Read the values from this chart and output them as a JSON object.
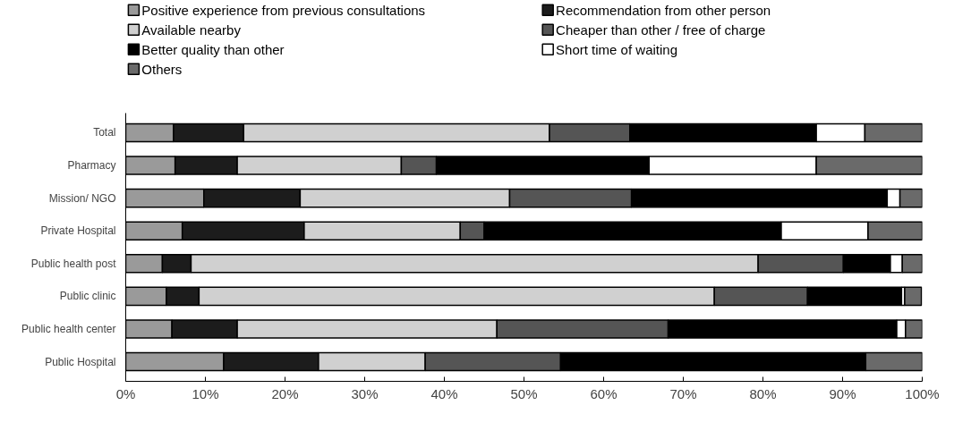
{
  "chart_data": {
    "type": "bar",
    "orientation": "horizontal",
    "stacked": true,
    "categories": [
      "Total",
      "Pharmacy",
      "Mission/ NGO",
      "Private Hospital",
      "Public health post",
      "Public clinic",
      "Public health center",
      "Public Hospital"
    ],
    "series": [
      {
        "name": "Positive experience from previous consultations",
        "color": "#9a9a9a",
        "values": [
          6,
          6.2,
          9.8,
          7.1,
          4.6,
          5.1,
          5.8,
          12.3
        ]
      },
      {
        "name": "Recommendation from other person",
        "color": "#1c1c1c",
        "values": [
          8.8,
          7.8,
          12.1,
          15.3,
          3.6,
          4.1,
          8.2,
          11.9
        ]
      },
      {
        "name": "Available nearby",
        "color": "#d0d0d0",
        "values": [
          38.4,
          20.6,
          26.3,
          19.6,
          71.2,
          64.7,
          32.6,
          13.4
        ]
      },
      {
        "name": "Cheaper than other / free of charge",
        "color": "#555555",
        "values": [
          10.1,
          4.4,
          15.3,
          3,
          10.7,
          11.7,
          21.5,
          17
        ]
      },
      {
        "name": "Better quality than other",
        "color": "#000000",
        "values": [
          23.4,
          26.7,
          32.1,
          37.3,
          5.9,
          11.8,
          28.7,
          38.3
        ]
      },
      {
        "name": "Short time of waiting",
        "color": "#ffffff",
        "values": [
          6.1,
          21,
          1.6,
          10.9,
          1.5,
          0.4,
          1.1,
          0
        ]
      },
      {
        "name": "Others",
        "color": "#6a6a6a",
        "values": [
          7.2,
          13.3,
          2.8,
          6.8,
          2.6,
          2.1,
          2.1,
          7.1
        ]
      }
    ],
    "xlim": [
      0,
      100
    ],
    "xticks": [
      {
        "value": 0,
        "label": "0%"
      },
      {
        "value": 10,
        "label": "10%"
      },
      {
        "value": 20,
        "label": "20%"
      },
      {
        "value": 30,
        "label": "30%"
      },
      {
        "value": 40,
        "label": "40%"
      },
      {
        "value": 50,
        "label": "50%"
      },
      {
        "value": 60,
        "label": "60%"
      },
      {
        "value": 70,
        "label": "70%"
      },
      {
        "value": 80,
        "label": "80%"
      },
      {
        "value": 90,
        "label": "90%"
      },
      {
        "value": 100,
        "label": "100%"
      }
    ],
    "legend": "top left",
    "grid": false
  }
}
